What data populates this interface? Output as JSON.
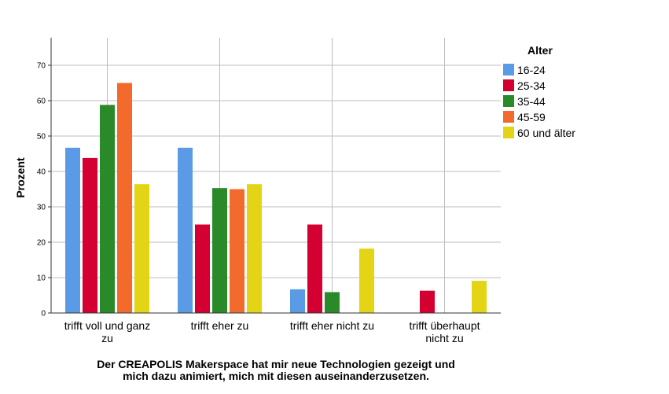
{
  "chart_data": {
    "type": "bar",
    "categories": [
      [
        "trifft voll und ganz",
        "zu"
      ],
      [
        "trifft eher zu"
      ],
      [
        "trifft eher nicht zu"
      ],
      [
        "trifft überhaupt",
        "nicht zu"
      ]
    ],
    "xlabel": [
      "Der CREAPOLIS Makerspace hat mir neue Technologien gezeigt und",
      "mich dazu animiert, mich mit diesen auseinanderzusetzen."
    ],
    "ylabel": "Prozent",
    "ylim": [
      0,
      77
    ],
    "yticks": [
      0,
      10,
      20,
      30,
      40,
      50,
      60,
      70
    ],
    "legend_title": "Alter",
    "legend_position": "right",
    "grid": true,
    "series": [
      {
        "name": "16-24",
        "color": "#5b9be6",
        "values": [
          46.7,
          46.7,
          6.7,
          0
        ]
      },
      {
        "name": "25-34",
        "color": "#d50032",
        "values": [
          43.8,
          25.0,
          25.0,
          6.3
        ]
      },
      {
        "name": "35-44",
        "color": "#2a8a2a",
        "values": [
          58.8,
          35.3,
          5.9,
          0
        ]
      },
      {
        "name": "45-59",
        "color": "#f26b2c",
        "values": [
          65.0,
          35.0,
          0,
          0
        ]
      },
      {
        "name": "60 und älter",
        "color": "#e3d515",
        "values": [
          36.4,
          36.4,
          18.2,
          9.1
        ]
      }
    ]
  }
}
